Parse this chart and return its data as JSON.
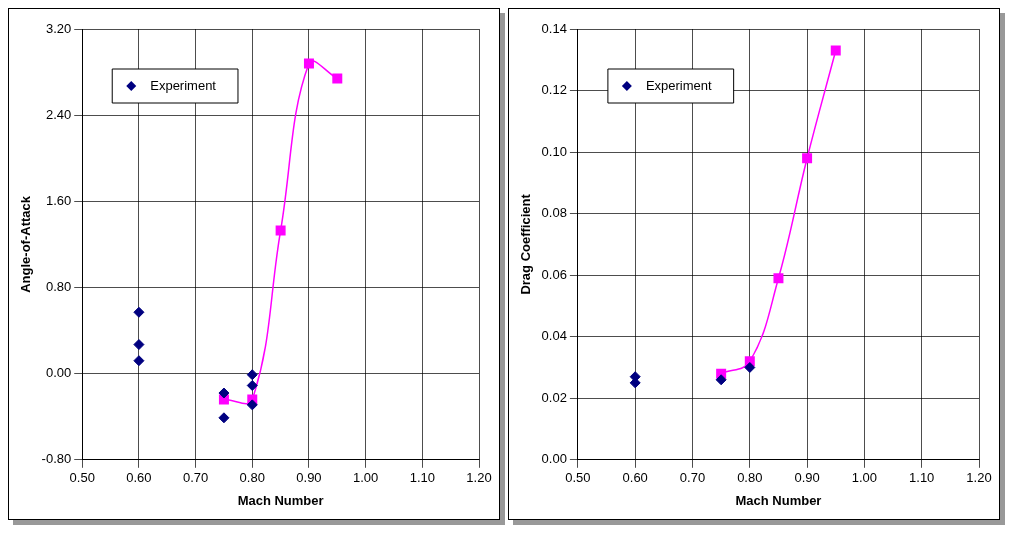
{
  "chart_data": [
    {
      "type": "scatter",
      "xlabel": "Mach Number",
      "ylabel": "Angle-of-Attack",
      "xlim": [
        0.5,
        1.2
      ],
      "ylim": [
        -0.8,
        3.2
      ],
      "xticks": [
        {
          "value": 0.5,
          "label": "0.50"
        },
        {
          "value": 0.6,
          "label": "0.60"
        },
        {
          "value": 0.7,
          "label": "0.70"
        },
        {
          "value": 0.8,
          "label": "0.80"
        },
        {
          "value": 0.9,
          "label": "0.90"
        },
        {
          "value": 1.0,
          "label": "1.00"
        },
        {
          "value": 1.1,
          "label": "1.10"
        },
        {
          "value": 1.2,
          "label": "1.20"
        }
      ],
      "yticks": [
        {
          "value": -0.8,
          "label": "-0.80"
        },
        {
          "value": 0,
          "label": "0.00"
        },
        {
          "value": 0.8,
          "label": "0.80"
        },
        {
          "value": 1.6,
          "label": "1.60"
        },
        {
          "value": 2.4,
          "label": "2.40"
        },
        {
          "value": 3.2,
          "label": "3.20"
        }
      ],
      "grid": true,
      "legend": "top left",
      "series": [
        {
          "name": "Experiment",
          "type": "scatter",
          "marker": "diamond",
          "color": "#000080",
          "x": [
            0.6,
            0.6,
            0.6,
            0.75,
            0.75,
            0.8,
            0.8,
            0.8
          ],
          "values": [
            0.57,
            0.27,
            0.12,
            -0.18,
            -0.41,
            -0.01,
            -0.11,
            -0.29
          ]
        },
        {
          "type": "line",
          "marker": "square",
          "line_style": "solid",
          "color": "#ff00ff",
          "x": [
            0.75,
            0.8,
            0.85,
            0.9,
            0.95
          ],
          "values": [
            -0.24,
            -0.24,
            1.33,
            2.88,
            2.74
          ]
        }
      ]
    },
    {
      "type": "scatter",
      "xlabel": "Mach Number",
      "ylabel": "Drag Coefficient",
      "xlim": [
        0.5,
        1.2
      ],
      "ylim": [
        0,
        0.14
      ],
      "xticks": [
        {
          "value": 0.5,
          "label": "0.50"
        },
        {
          "value": 0.6,
          "label": "0.60"
        },
        {
          "value": 0.7,
          "label": "0.70"
        },
        {
          "value": 0.8,
          "label": "0.80"
        },
        {
          "value": 0.9,
          "label": "0.90"
        },
        {
          "value": 1.0,
          "label": "1.00"
        },
        {
          "value": 1.1,
          "label": "1.10"
        },
        {
          "value": 1.2,
          "label": "1.20"
        }
      ],
      "yticks": [
        {
          "value": 0,
          "label": "0.00"
        },
        {
          "value": 0.02,
          "label": "0.02"
        },
        {
          "value": 0.04,
          "label": "0.04"
        },
        {
          "value": 0.06,
          "label": "0.06"
        },
        {
          "value": 0.08,
          "label": "0.08"
        },
        {
          "value": 0.1,
          "label": "0.10"
        },
        {
          "value": 0.12,
          "label": "0.12"
        },
        {
          "value": 0.14,
          "label": "0.14"
        }
      ],
      "grid": true,
      "legend": "top left",
      "series": [
        {
          "name": "Experiment",
          "type": "scatter",
          "marker": "diamond",
          "color": "#000080",
          "x": [
            0.6,
            0.6,
            0.75,
            0.8
          ],
          "values": [
            0.027,
            0.025,
            0.026,
            0.03
          ]
        },
        {
          "type": "line",
          "marker": "square",
          "line_style": "solid",
          "color": "#ff00ff",
          "x": [
            0.75,
            0.8,
            0.85,
            0.9,
            0.95
          ],
          "values": [
            0.028,
            0.032,
            0.059,
            0.098,
            0.133
          ]
        }
      ]
    }
  ]
}
